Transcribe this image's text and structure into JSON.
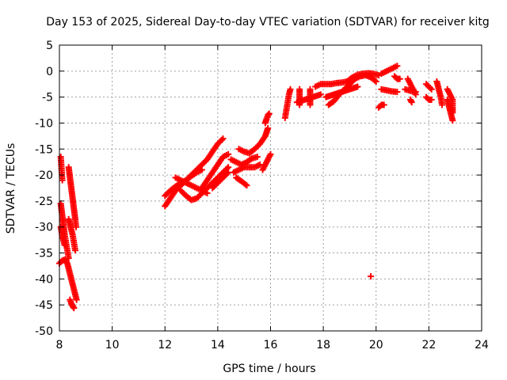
{
  "chart_data": {
    "type": "scatter",
    "title": "Day 153 of 2025, Sidereal Day-to-day VTEC variation (SDTVAR) for receiver kitg",
    "xlabel": "GPS time / hours",
    "ylabel": "SDTVAR / TECUs",
    "xlim": [
      8,
      24
    ],
    "ylim": [
      -50,
      5
    ],
    "xticks": [
      "8",
      "10",
      "12",
      "14",
      "16",
      "18",
      "20",
      "22",
      "24"
    ],
    "yticks": [
      "5",
      "0",
      "-5",
      "-10",
      "-15",
      "-20",
      "-25",
      "-30",
      "-35",
      "-40",
      "-45",
      "-50"
    ],
    "grid": true,
    "marker": "+",
    "color": "#ff0000",
    "series": [
      {
        "name": "SDTVAR",
        "segments": [
          [
            [
              8.05,
              -16.5
            ],
            [
              8.07,
              -18
            ],
            [
              8.09,
              -19.5
            ],
            [
              8.11,
              -21
            ]
          ],
          [
            [
              8.05,
              -25.5
            ],
            [
              8.1,
              -27.5
            ],
            [
              8.15,
              -29.5
            ],
            [
              8.2,
              -31.5
            ],
            [
              8.25,
              -33
            ],
            [
              8.3,
              -34.5
            ],
            [
              8.35,
              -36
            ]
          ],
          [
            [
              8.05,
              -30
            ],
            [
              8.1,
              -31.5
            ],
            [
              8.15,
              -32.5
            ],
            [
              8.2,
              -33.5
            ]
          ],
          [
            [
              8.0,
              -37
            ],
            [
              8.1,
              -36.5
            ],
            [
              8.2,
              -36.3
            ],
            [
              8.3,
              -37
            ],
            [
              8.35,
              -38
            ],
            [
              8.4,
              -39
            ],
            [
              8.45,
              -40
            ],
            [
              8.5,
              -41
            ],
            [
              8.55,
              -42
            ],
            [
              8.6,
              -43
            ],
            [
              8.65,
              -44
            ]
          ],
          [
            [
              8.35,
              -28.5
            ],
            [
              8.4,
              -29.5
            ],
            [
              8.45,
              -30.5
            ],
            [
              8.5,
              -31.5
            ],
            [
              8.55,
              -33
            ],
            [
              8.6,
              -34.5
            ]
          ],
          [
            [
              8.35,
              -18.5
            ],
            [
              8.4,
              -20.5
            ],
            [
              8.45,
              -22.5
            ],
            [
              8.5,
              -24.5
            ],
            [
              8.55,
              -26.5
            ],
            [
              8.6,
              -28.5
            ],
            [
              8.63,
              -30
            ]
          ],
          [
            [
              8.4,
              -44
            ],
            [
              8.45,
              -44.7
            ],
            [
              8.5,
              -45.2
            ],
            [
              8.55,
              -45.6
            ]
          ],
          [
            [
              12.0,
              -26
            ],
            [
              12.2,
              -24.5
            ],
            [
              12.4,
              -23
            ],
            [
              12.6,
              -22
            ],
            [
              12.8,
              -21
            ],
            [
              13.0,
              -20
            ],
            [
              13.2,
              -19
            ],
            [
              13.4,
              -18
            ],
            [
              13.6,
              -17
            ],
            [
              13.8,
              -15.5
            ],
            [
              14.0,
              -14
            ],
            [
              14.2,
              -13
            ]
          ],
          [
            [
              12.0,
              -24
            ],
            [
              12.2,
              -23
            ],
            [
              12.4,
              -22.2
            ],
            [
              12.6,
              -21.6
            ],
            [
              12.8,
              -21
            ],
            [
              13.0,
              -20.2
            ],
            [
              13.2,
              -19.5
            ],
            [
              13.4,
              -19
            ]
          ],
          [
            [
              12.4,
              -20.5
            ],
            [
              12.6,
              -21
            ],
            [
              12.8,
              -21.5
            ],
            [
              13.0,
              -22
            ],
            [
              13.2,
              -22.5
            ],
            [
              13.4,
              -23
            ],
            [
              13.6,
              -23.5
            ]
          ],
          [
            [
              12.6,
              -23
            ],
            [
              12.8,
              -24
            ],
            [
              13.0,
              -24.8
            ],
            [
              13.2,
              -24.5
            ],
            [
              13.4,
              -23.5
            ],
            [
              13.6,
              -22.5
            ],
            [
              13.8,
              -21.5
            ],
            [
              14.0,
              -20.5
            ],
            [
              14.2,
              -19.5
            ],
            [
              14.4,
              -18.5
            ]
          ],
          [
            [
              13.4,
              -22.5
            ],
            [
              13.6,
              -21
            ],
            [
              13.8,
              -19.5
            ],
            [
              14.0,
              -18
            ],
            [
              14.2,
              -16.5
            ],
            [
              14.4,
              -16
            ]
          ],
          [
            [
              13.8,
              -22.5
            ],
            [
              14.0,
              -21.5
            ],
            [
              14.2,
              -20.5
            ],
            [
              14.4,
              -19.5
            ]
          ],
          [
            [
              14.6,
              -19.5
            ],
            [
              14.8,
              -19
            ],
            [
              15.0,
              -18.5
            ],
            [
              15.2,
              -18.5
            ],
            [
              15.4,
              -18.5
            ],
            [
              15.6,
              -18
            ]
          ],
          [
            [
              14.8,
              -15
            ],
            [
              15.0,
              -15.5
            ],
            [
              15.2,
              -15.8
            ],
            [
              15.4,
              -15
            ],
            [
              15.6,
              -14
            ],
            [
              15.8,
              -12.5
            ],
            [
              15.9,
              -11
            ]
          ],
          [
            [
              14.5,
              -17
            ],
            [
              14.7,
              -17.5
            ],
            [
              14.9,
              -18
            ],
            [
              15.1,
              -17.5
            ],
            [
              15.3,
              -16.8
            ],
            [
              15.5,
              -16.5
            ]
          ],
          [
            [
              14.7,
              -20.5
            ],
            [
              14.9,
              -21.2
            ],
            [
              15.1,
              -22
            ]
          ],
          [
            [
              15.8,
              -10
            ],
            [
              15.85,
              -9.2
            ],
            [
              15.9,
              -8.5
            ],
            [
              15.95,
              -8.2
            ]
          ],
          [
            [
              15.7,
              -19
            ],
            [
              15.8,
              -18
            ],
            [
              15.9,
              -17
            ],
            [
              16.0,
              -16
            ]
          ],
          [
            [
              16.55,
              -9
            ],
            [
              16.6,
              -7.5
            ],
            [
              16.65,
              -6
            ],
            [
              16.7,
              -4.5
            ],
            [
              16.75,
              -3.5
            ]
          ],
          [
            [
              17.1,
              -3.5
            ],
            [
              17.1,
              -4.5
            ],
            [
              17.1,
              -5.5
            ],
            [
              17.1,
              -6.5
            ]
          ],
          [
            [
              17.0,
              -6
            ],
            [
              17.3,
              -5.5
            ],
            [
              17.6,
              -5
            ],
            [
              17.9,
              -4.5
            ]
          ],
          [
            [
              17.5,
              -3.5
            ],
            [
              17.5,
              -4.5
            ],
            [
              17.5,
              -5.5
            ],
            [
              17.5,
              -6.5
            ]
          ],
          [
            [
              17.7,
              -3
            ],
            [
              17.9,
              -2.5
            ],
            [
              18.1,
              -2.5
            ],
            [
              18.3,
              -2.5
            ],
            [
              18.5,
              -2.3
            ],
            [
              18.7,
              -2.2
            ],
            [
              18.9,
              -2
            ]
          ],
          [
            [
              18.1,
              -5
            ],
            [
              18.4,
              -4.5
            ],
            [
              18.7,
              -4
            ],
            [
              19.0,
              -3.5
            ],
            [
              19.3,
              -3
            ]
          ],
          [
            [
              18.2,
              -6.5
            ],
            [
              18.4,
              -5.8
            ],
            [
              18.6,
              -4.5
            ],
            [
              18.8,
              -3.5
            ],
            [
              19.0,
              -2.5
            ],
            [
              19.2,
              -1.5
            ],
            [
              19.4,
              -1
            ],
            [
              19.6,
              -0.8
            ],
            [
              19.8,
              -1.2
            ],
            [
              20.0,
              -2
            ]
          ],
          [
            [
              18.9,
              -2
            ],
            [
              19.1,
              -1.2
            ],
            [
              19.3,
              -0.7
            ],
            [
              19.5,
              -0.5
            ],
            [
              19.7,
              -0.4
            ],
            [
              19.9,
              -0.5
            ],
            [
              20.1,
              -0.8
            ]
          ],
          [
            [
              20.1,
              -7
            ],
            [
              20.2,
              -6.5
            ],
            [
              20.3,
              -6.5
            ]
          ],
          [
            [
              20.2,
              -0.5
            ],
            [
              20.4,
              0
            ],
            [
              20.6,
              0.5
            ],
            [
              20.8,
              1
            ]
          ],
          [
            [
              20.7,
              -1
            ],
            [
              20.8,
              -1.5
            ],
            [
              20.9,
              -1.5
            ]
          ],
          [
            [
              20.2,
              -3.5
            ],
            [
              20.4,
              -3.7
            ],
            [
              20.6,
              -3.9
            ],
            [
              20.8,
              -4
            ]
          ],
          [
            [
              21.2,
              -1.5
            ],
            [
              21.3,
              -2.5
            ],
            [
              21.4,
              -3.5
            ],
            [
              21.5,
              -4.5
            ]
          ],
          [
            [
              21.1,
              -3.5
            ],
            [
              21.3,
              -3.8
            ],
            [
              21.5,
              -4
            ]
          ],
          [
            [
              21.3,
              -5.5
            ],
            [
              21.35,
              -6
            ]
          ],
          [
            [
              21.9,
              -2.5
            ],
            [
              22.0,
              -3
            ],
            [
              22.1,
              -3.5
            ]
          ],
          [
            [
              21.9,
              -5
            ],
            [
              22.0,
              -5.5
            ],
            [
              22.1,
              -5.5
            ]
          ],
          [
            [
              22.3,
              -2
            ],
            [
              22.35,
              -3
            ],
            [
              22.4,
              -4
            ],
            [
              22.45,
              -5
            ],
            [
              22.5,
              -6.5
            ]
          ],
          [
            [
              22.7,
              -3.5
            ],
            [
              22.8,
              -4.5
            ],
            [
              22.9,
              -5.5
            ],
            [
              22.9,
              -7
            ],
            [
              22.9,
              -8
            ]
          ],
          [
            [
              22.7,
              -5.5
            ],
            [
              22.75,
              -6.5
            ],
            [
              22.8,
              -7.5
            ],
            [
              22.85,
              -8.5
            ],
            [
              22.9,
              -9.5
            ]
          ],
          [
            [
              19.8,
              -39.5
            ]
          ]
        ]
      }
    ]
  }
}
